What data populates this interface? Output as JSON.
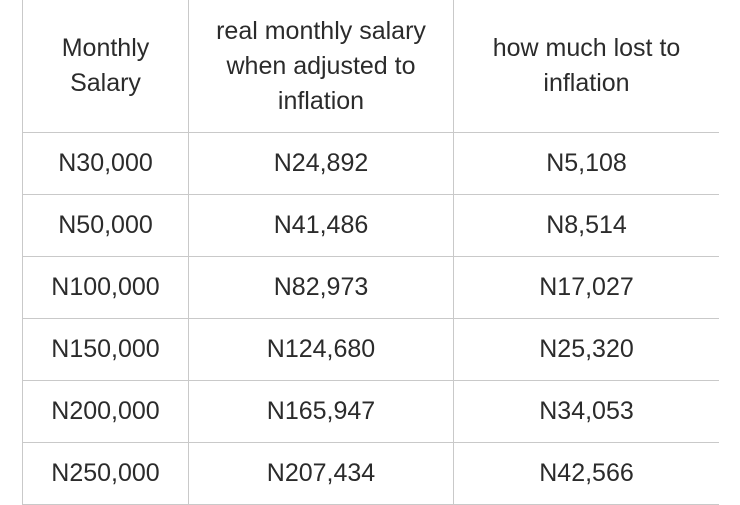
{
  "table": {
    "headers": [
      "Monthly Salary",
      "real monthly salary when adjusted to inflation",
      "how much lost to inflation"
    ],
    "rows": [
      [
        "N30,000",
        "N24,892",
        "N5,108"
      ],
      [
        "N50,000",
        "N41,486",
        "N8,514"
      ],
      [
        "N100,000",
        "N82,973",
        "N17,027"
      ],
      [
        "N150,000",
        "N124,680",
        "N25,320"
      ],
      [
        "N200,000",
        "N165,947",
        "N34,053"
      ],
      [
        "N250,000",
        "N207,434",
        "N42,566"
      ]
    ]
  }
}
